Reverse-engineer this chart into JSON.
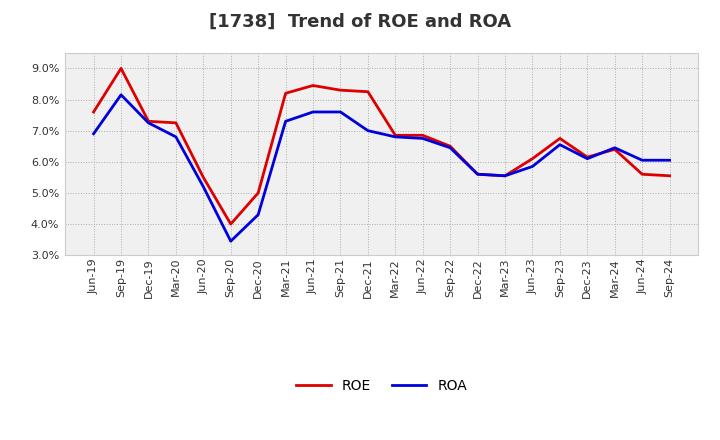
{
  "title": "[1738]  Trend of ROE and ROA",
  "x_labels": [
    "Jun-19",
    "Sep-19",
    "Dec-19",
    "Mar-20",
    "Jun-20",
    "Sep-20",
    "Dec-20",
    "Mar-21",
    "Jun-21",
    "Sep-21",
    "Dec-21",
    "Mar-22",
    "Jun-22",
    "Sep-22",
    "Dec-22",
    "Mar-23",
    "Jun-23",
    "Sep-23",
    "Dec-23",
    "Mar-24",
    "Jun-24",
    "Sep-24"
  ],
  "roe": [
    7.6,
    9.0,
    7.3,
    7.25,
    5.5,
    4.0,
    5.0,
    8.2,
    8.45,
    8.3,
    8.25,
    6.85,
    6.85,
    6.5,
    5.6,
    5.55,
    6.1,
    6.75,
    6.15,
    6.4,
    5.6,
    5.55
  ],
  "roa": [
    6.9,
    8.15,
    7.25,
    6.8,
    5.2,
    3.45,
    4.3,
    7.3,
    7.6,
    7.6,
    7.0,
    6.8,
    6.75,
    6.45,
    5.6,
    5.55,
    5.85,
    6.55,
    6.1,
    6.45,
    6.05,
    6.05
  ],
  "roe_color": "#dd0000",
  "roa_color": "#0000dd",
  "ylim_min": 3.0,
  "ylim_max": 9.5,
  "yticks": [
    3.0,
    4.0,
    5.0,
    6.0,
    7.0,
    8.0,
    9.0
  ],
  "background_color": "#ffffff",
  "plot_bg_color": "#f0f0f0",
  "grid_color": "#aaaaaa",
  "title_fontsize": 13,
  "legend_fontsize": 10,
  "tick_fontsize": 8,
  "line_width": 2.0,
  "title_color": "#333333"
}
